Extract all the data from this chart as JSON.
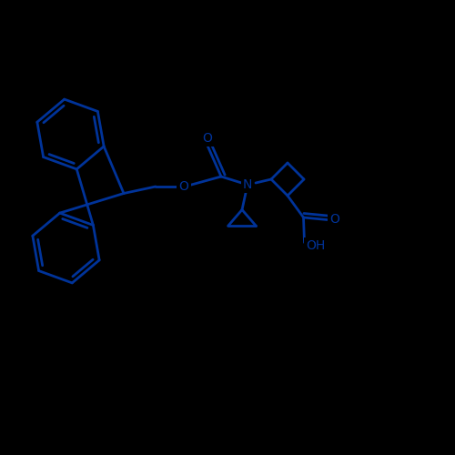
{
  "bond_color": "#003399",
  "background_color": "#000000",
  "line_width": 2.0,
  "figsize": [
    5.0,
    5.0
  ],
  "dpi": 100,
  "xlim": [
    0,
    10
  ],
  "ylim": [
    0,
    10
  ]
}
